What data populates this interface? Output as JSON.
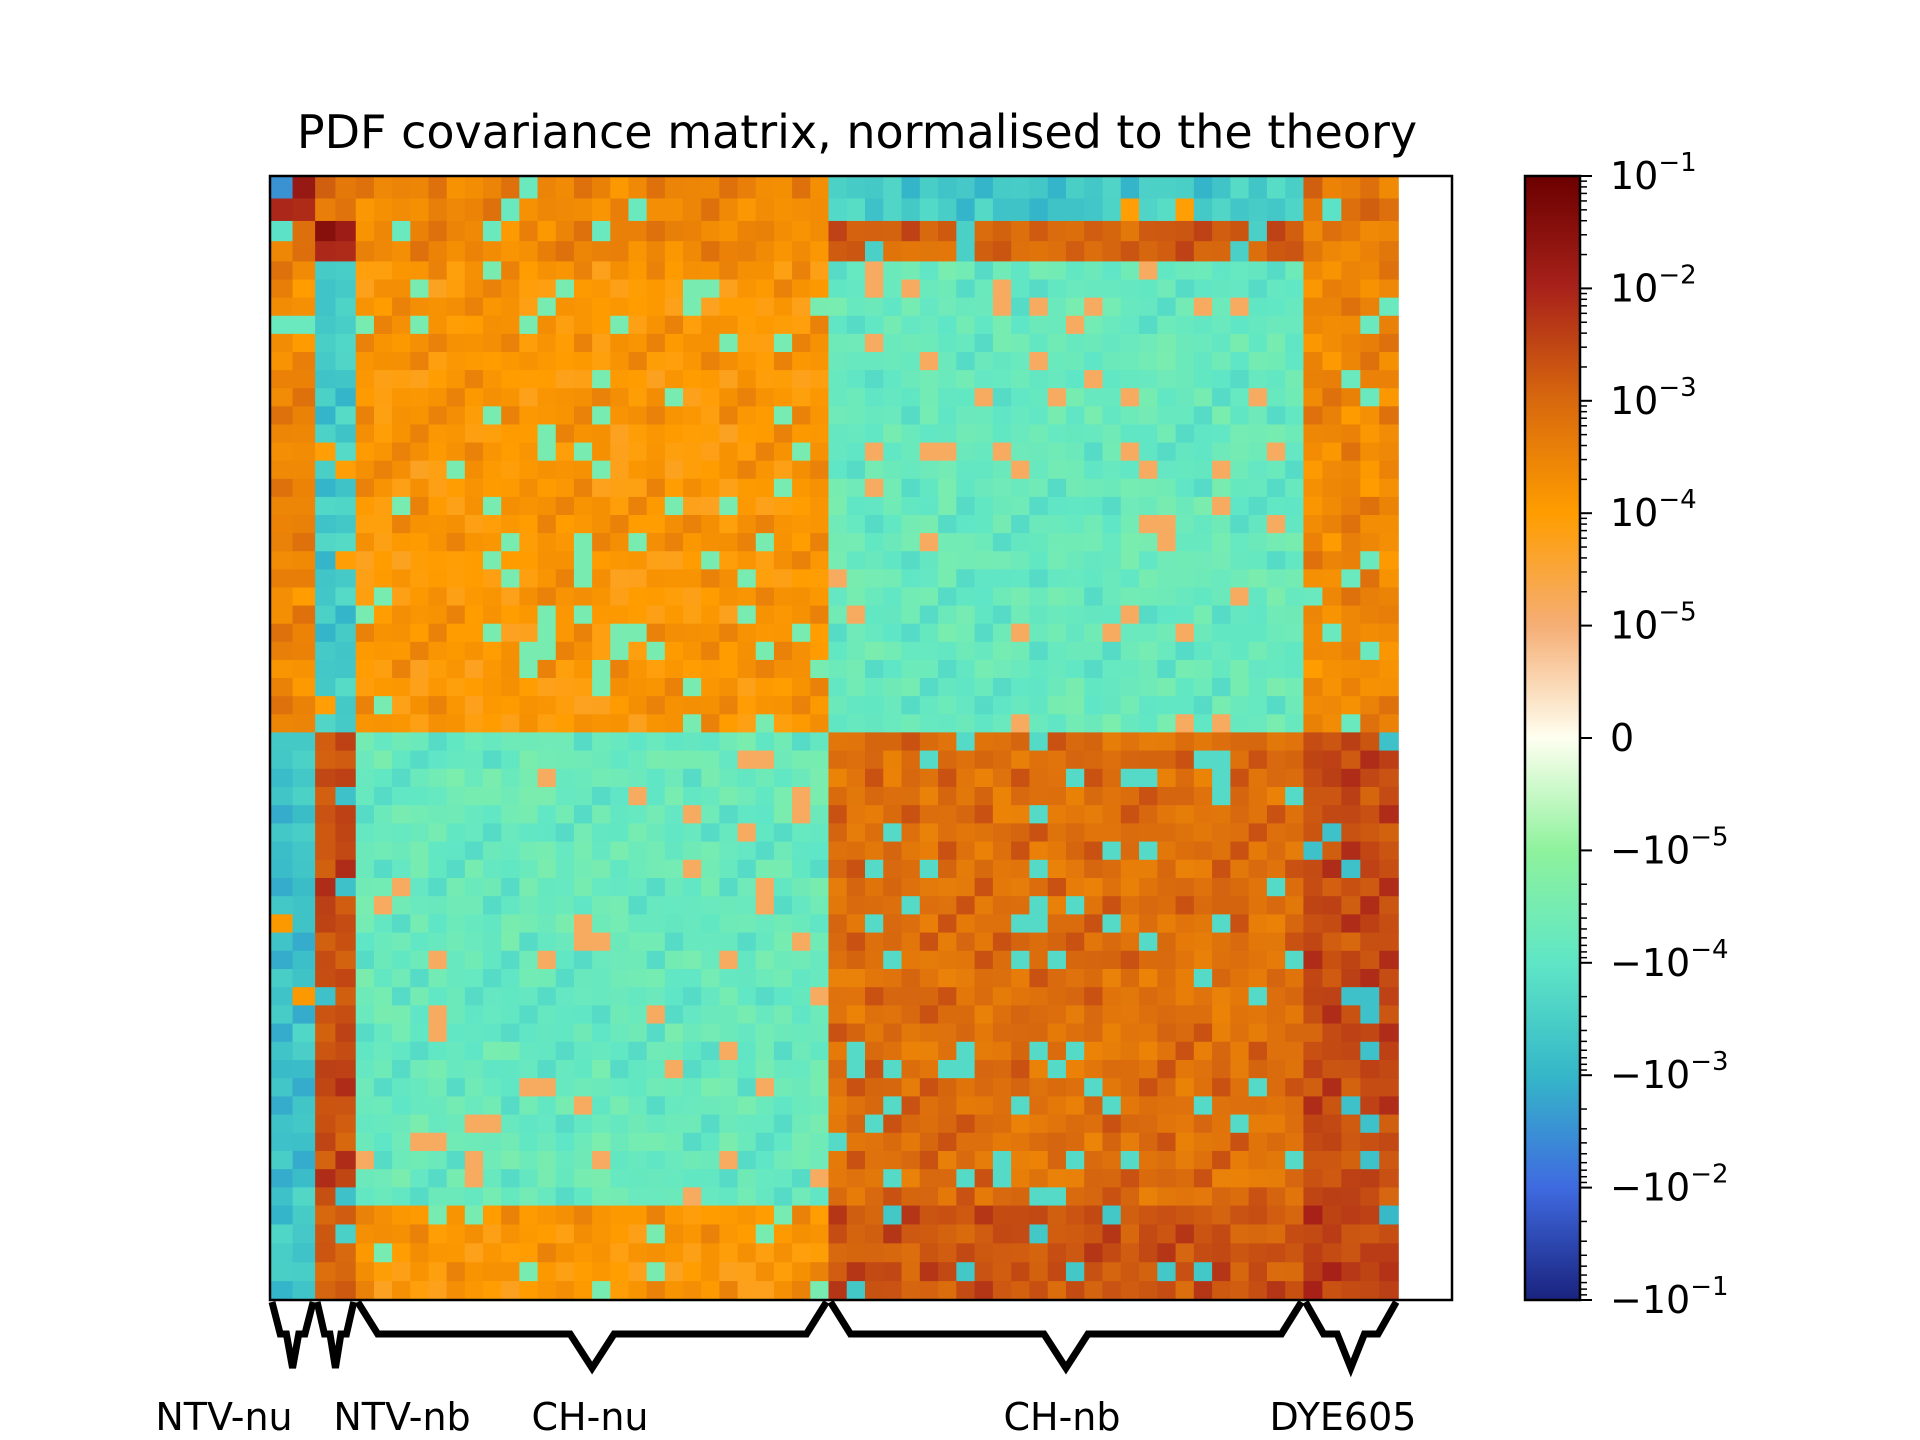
{
  "chart_data": {
    "type": "heatmap",
    "title": "PDF covariance matrix, normalised to the theory",
    "xlabel": "",
    "ylabel": "",
    "color_scale": "symlog",
    "colormap": [
      "#1a237e",
      "#3f6ae0",
      "#35b7c8",
      "#5fe6c6",
      "#8ef29c",
      "#fffff0",
      "#f5ae75",
      "#ff9d00",
      "#d8690e",
      "#a8221a",
      "#6b0000"
    ],
    "colorbar": {
      "ticks": [
        {
          "base": "10",
          "exp": "−1",
          "value": 0.1
        },
        {
          "base": "10",
          "exp": "−2",
          "value": 0.01
        },
        {
          "base": "10",
          "exp": "−3",
          "value": 0.001
        },
        {
          "base": "10",
          "exp": "−4",
          "value": 0.0001
        },
        {
          "base": "10",
          "exp": "−5",
          "value": 1e-05
        },
        {
          "base": "0",
          "exp": "",
          "value": 0
        },
        {
          "base": "−10",
          "exp": "−5",
          "value": -1e-05
        },
        {
          "base": "−10",
          "exp": "−4",
          "value": -0.0001
        },
        {
          "base": "−10",
          "exp": "−3",
          "value": -0.001
        },
        {
          "base": "−10",
          "exp": "−2",
          "value": -0.01
        },
        {
          "base": "−10",
          "exp": "−1",
          "value": -0.1
        }
      ],
      "vmin": -0.1,
      "vmax": 0.1
    },
    "datasets": [
      {
        "name": "NTV-nu",
        "fraction": 0.04
      },
      {
        "name": "NTV-nb",
        "fraction": 0.036
      },
      {
        "name": "CH-nu",
        "fraction": 0.419
      },
      {
        "name": "CH-nb",
        "fraction": 0.421
      },
      {
        "name": "DYE605",
        "fraction": 0.084
      }
    ],
    "block_values": [
      [
        0.01,
        0.0004,
        0.0002,
        -0.0003,
        0.0004
      ],
      [
        0.0004,
        0.01,
        0.0002,
        0.001,
        0.0004
      ],
      [
        0.0002,
        -0.0003,
        0.0001,
        -5e-05,
        0.0002
      ],
      [
        -0.0004,
        0.002,
        -5e-05,
        0.0006,
        0.002
      ],
      [
        -0.0003,
        0.001,
        0.0001,
        0.0015,
        0.003
      ]
    ]
  }
}
